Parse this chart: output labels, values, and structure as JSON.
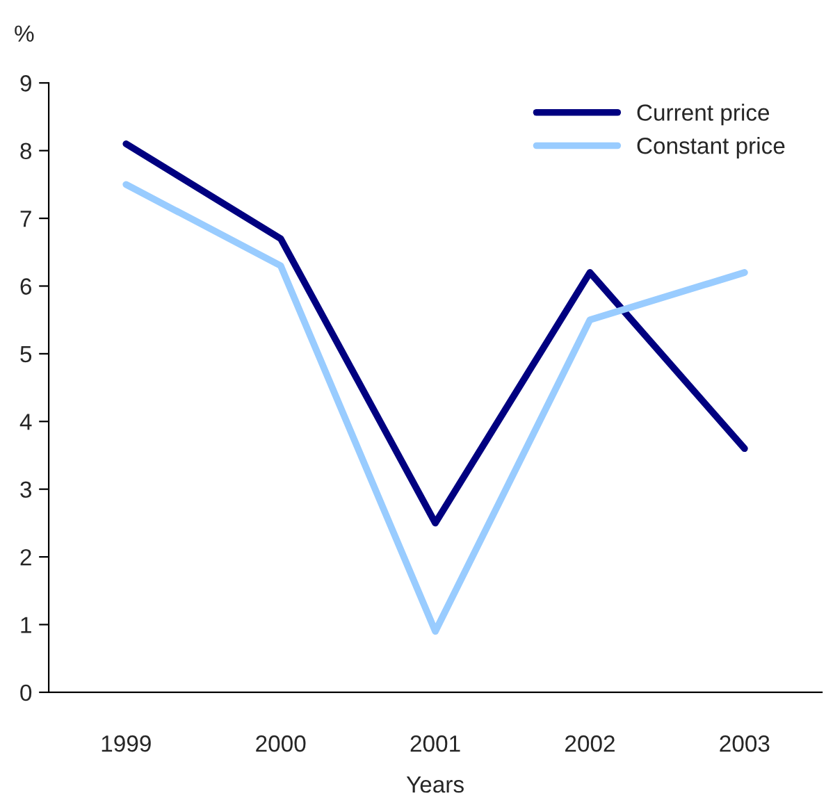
{
  "chart_data": {
    "type": "line",
    "ylabel": "%",
    "xlabel": "Years",
    "categories": [
      "1999",
      "2000",
      "2001",
      "2002",
      "2003"
    ],
    "series": [
      {
        "name": "Current price",
        "color": "#000080",
        "values": [
          8.1,
          6.7,
          2.5,
          6.2,
          3.6
        ]
      },
      {
        "name": "Constant price",
        "color": "#99ccff",
        "values": [
          7.5,
          6.3,
          0.9,
          5.5,
          6.2
        ]
      }
    ],
    "ylim": [
      0,
      9
    ],
    "yticks": [
      0,
      1,
      2,
      3,
      4,
      5,
      6,
      7,
      8,
      9
    ],
    "grid": false,
    "legend": "top right",
    "marker": "none",
    "line_style": "solid"
  }
}
